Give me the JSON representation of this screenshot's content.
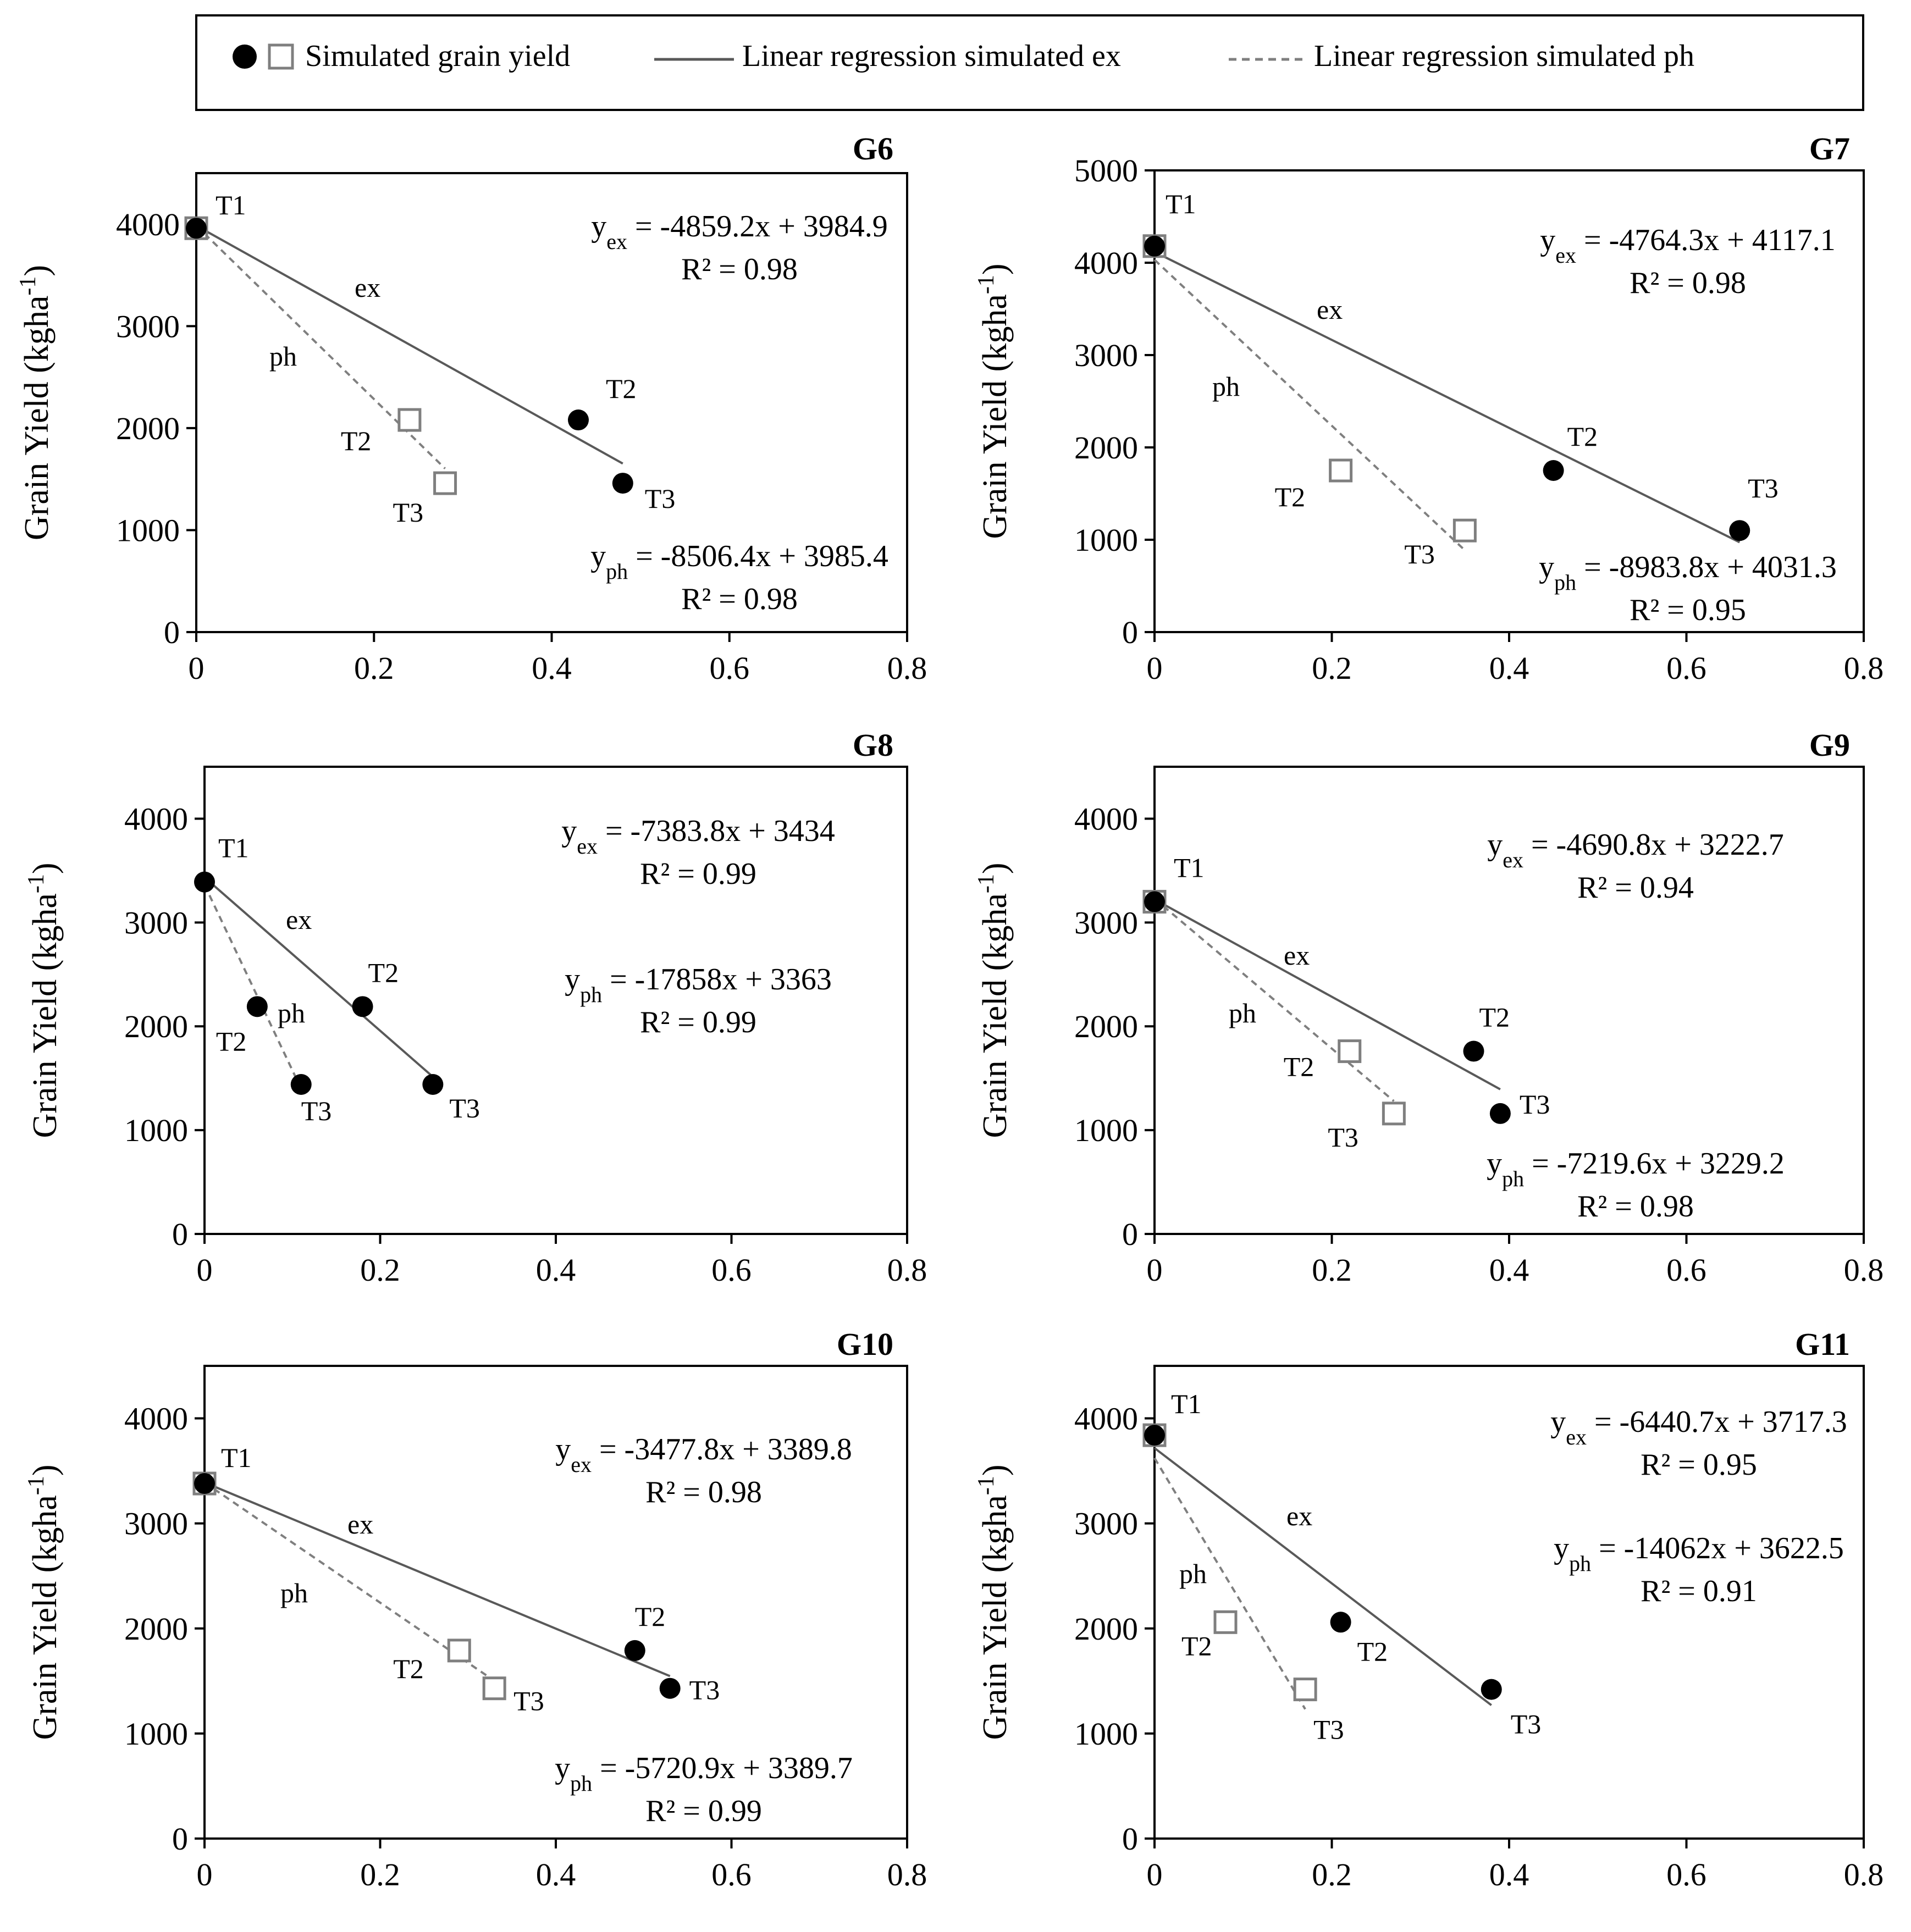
{
  "legend": {
    "markers_label": "Simulated grain yield",
    "ex_line_label": "Linear regression simulated ex",
    "ph_line_label": "Linear regression simulated ph"
  },
  "colors": {
    "ex_marker": "#000000",
    "ph_marker_edge": "#7f7f7f",
    "ex_line": "#595959",
    "ph_line": "#7f7f7f"
  },
  "chart_data": [
    {
      "type": "scatter",
      "title": "G6",
      "ylabel": "Grain Yield (kgha-1)",
      "ylabel_main": "Grain Yield (kgha",
      "ylabel_exp": "-1",
      "ylabel_close": ")",
      "xlim": [
        0,
        0.8
      ],
      "ylim": [
        0,
        4500
      ],
      "xticks": [
        "0",
        "0.2",
        "0.4",
        "0.6",
        "0.8"
      ],
      "yticks": [
        "0",
        "1000",
        "2000",
        "3000",
        "4000"
      ],
      "series": [
        {
          "name": "ex",
          "points": [
            {
              "x": 0,
              "y": 3960,
              "label": "T1"
            },
            {
              "x": 0.43,
              "y": 2080,
              "label": "T2"
            },
            {
              "x": 0.48,
              "y": 1460,
              "label": "T3"
            }
          ],
          "fit": {
            "slope": -4859.2,
            "intercept": 3984.9,
            "x_end": 0.48
          }
        },
        {
          "name": "ph",
          "points": [
            {
              "x": 0,
              "y": 3960,
              "label": ""
            },
            {
              "x": 0.24,
              "y": 2080,
              "label": "T2"
            },
            {
              "x": 0.28,
              "y": 1460,
              "label": "T3"
            }
          ],
          "fit": {
            "slope": -8506.4,
            "intercept": 3985.4,
            "x_end": 0.28
          }
        }
      ],
      "eq_ex": {
        "pre": "y",
        "sub": "ex",
        "post": " = -4859.2x + 3984.9",
        "r2": "R² = 0.98"
      },
      "eq_ph": {
        "pre": "y",
        "sub": "ph",
        "post": " = -8506.4x + 3985.4",
        "r2": "R² = 0.98"
      }
    },
    {
      "type": "scatter",
      "title": "G7",
      "ylabel": "Grain Yield (kgha-1)",
      "ylabel_main": "Grain Yield (kgha",
      "ylabel_exp": "-1",
      "ylabel_close": ")",
      "xlim": [
        0,
        0.8
      ],
      "ylim": [
        0,
        5000
      ],
      "xticks": [
        "0",
        "0.2",
        "0.4",
        "0.6",
        "0.8"
      ],
      "yticks": [
        "0",
        "1000",
        "2000",
        "3000",
        "4000",
        "5000"
      ],
      "series": [
        {
          "name": "ex",
          "points": [
            {
              "x": 0,
              "y": 4180,
              "label": "T1"
            },
            {
              "x": 0.45,
              "y": 1750,
              "label": "T2"
            },
            {
              "x": 0.66,
              "y": 1100,
              "label": "T3"
            }
          ],
          "fit": {
            "slope": -4764.3,
            "intercept": 4117.1,
            "x_end": 0.66
          }
        },
        {
          "name": "ph",
          "points": [
            {
              "x": 0,
              "y": 4180,
              "label": ""
            },
            {
              "x": 0.21,
              "y": 1750,
              "label": "T2"
            },
            {
              "x": 0.35,
              "y": 1100,
              "label": "T3"
            }
          ],
          "fit": {
            "slope": -8983.8,
            "intercept": 4031.3,
            "x_end": 0.35
          }
        }
      ],
      "eq_ex": {
        "pre": "y",
        "sub": "ex",
        "post": " = -4764.3x + 4117.1",
        "r2": "R² = 0.98"
      },
      "eq_ph": {
        "pre": "y",
        "sub": "ph",
        "post": " = -8983.8x + 4031.3",
        "r2": "R² = 0.95"
      }
    },
    {
      "type": "scatter",
      "title": "G8",
      "ylabel": "Grain Yield (kgha-1)",
      "ylabel_main": "Grain Yield (kgha",
      "ylabel_exp": "-1",
      "ylabel_close": ")",
      "xlim": [
        0,
        0.8
      ],
      "ylim": [
        0,
        4500
      ],
      "xticks": [
        "0",
        "0.2",
        "0.4",
        "0.6",
        "0.8"
      ],
      "yticks": [
        "0",
        "1000",
        "2000",
        "3000",
        "4000"
      ],
      "series": [
        {
          "name": "ex",
          "points": [
            {
              "x": 0,
              "y": 3390,
              "label": "T1"
            },
            {
              "x": 0.18,
              "y": 2190,
              "label": "T2"
            },
            {
              "x": 0.26,
              "y": 1440,
              "label": "T3"
            }
          ],
          "fit": {
            "slope": -7383.8,
            "intercept": 3434,
            "x_end": 0.26
          }
        },
        {
          "name": "ph",
          "points": [
            {
              "x": 0.06,
              "y": 2190,
              "label": "T2",
              "solid": true
            },
            {
              "x": 0.11,
              "y": 1440,
              "label": "T3",
              "solid": true
            }
          ],
          "fit": {
            "slope": -17858,
            "intercept": 3363,
            "x_end": 0.11
          }
        }
      ],
      "eq_ex": {
        "pre": "y",
        "sub": "ex",
        "post": " = -7383.8x + 3434",
        "r2": "R² = 0.99"
      },
      "eq_ph": {
        "pre": "y",
        "sub": "ph",
        "post": " = -17858x + 3363",
        "r2": "R² = 0.99"
      }
    },
    {
      "type": "scatter",
      "title": "G9",
      "ylabel": "Grain Yield (kgha-1)",
      "ylabel_main": "Grain Yield (kgha",
      "ylabel_exp": "-1",
      "ylabel_close": ")",
      "xlim": [
        0,
        0.8
      ],
      "ylim": [
        0,
        4500
      ],
      "xticks": [
        "0",
        "0.2",
        "0.4",
        "0.6",
        "0.8"
      ],
      "yticks": [
        "0",
        "1000",
        "2000",
        "3000",
        "4000"
      ],
      "series": [
        {
          "name": "ex",
          "points": [
            {
              "x": 0,
              "y": 3200,
              "label": "T1"
            },
            {
              "x": 0.36,
              "y": 1760,
              "label": "T2"
            },
            {
              "x": 0.39,
              "y": 1160,
              "label": "T3"
            }
          ],
          "fit": {
            "slope": -4690.8,
            "intercept": 3222.7,
            "x_end": 0.39
          }
        },
        {
          "name": "ph",
          "points": [
            {
              "x": 0,
              "y": 3200,
              "label": ""
            },
            {
              "x": 0.22,
              "y": 1760,
              "label": "T2"
            },
            {
              "x": 0.27,
              "y": 1160,
              "label": "T3"
            }
          ],
          "fit": {
            "slope": -7219.6,
            "intercept": 3229.2,
            "x_end": 0.27
          }
        }
      ],
      "eq_ex": {
        "pre": "y",
        "sub": "ex",
        "post": " = -4690.8x + 3222.7",
        "r2": "R² = 0.94"
      },
      "eq_ph": {
        "pre": "y",
        "sub": "ph",
        "post": " = -7219.6x + 3229.2",
        "r2": "R² = 0.98"
      }
    },
    {
      "type": "scatter",
      "title": "G10",
      "ylabel": "Grain Yield (kgha-1)",
      "ylabel_main": "Grain Yield (kgha",
      "ylabel_exp": "-1",
      "ylabel_close": ")",
      "xlim": [
        0,
        0.8
      ],
      "ylim": [
        0,
        4500
      ],
      "xticks": [
        "0",
        "0.2",
        "0.4",
        "0.6",
        "0.8"
      ],
      "yticks": [
        "0",
        "1000",
        "2000",
        "3000",
        "4000"
      ],
      "series": [
        {
          "name": "ex",
          "points": [
            {
              "x": 0,
              "y": 3380,
              "label": "T1"
            },
            {
              "x": 0.49,
              "y": 1790,
              "label": "T2"
            },
            {
              "x": 0.53,
              "y": 1430,
              "label": "T3"
            }
          ],
          "fit": {
            "slope": -3477.8,
            "intercept": 3389.8,
            "x_end": 0.53
          }
        },
        {
          "name": "ph",
          "points": [
            {
              "x": 0,
              "y": 3380,
              "label": ""
            },
            {
              "x": 0.29,
              "y": 1790,
              "label": "T2"
            },
            {
              "x": 0.33,
              "y": 1430,
              "label": "T3"
            }
          ],
          "fit": {
            "slope": -5720.9,
            "intercept": 3389.7,
            "x_end": 0.33
          }
        }
      ],
      "eq_ex": {
        "pre": "y",
        "sub": "ex",
        "post": " = -3477.8x + 3389.8",
        "r2": "R² = 0.98"
      },
      "eq_ph": {
        "pre": "y",
        "sub": "ph",
        "post": " = -5720.9x + 3389.7",
        "r2": "R² = 0.99"
      }
    },
    {
      "type": "scatter",
      "title": "G11",
      "ylabel": "Grain Yield (kgha-1)",
      "ylabel_main": "Grain Yield (kgha",
      "ylabel_exp": "-1",
      "ylabel_close": ")",
      "xlim": [
        0,
        0.8
      ],
      "ylim": [
        0,
        4500
      ],
      "xticks": [
        "0",
        "0.2",
        "0.4",
        "0.6",
        "0.8"
      ],
      "yticks": [
        "0",
        "1000",
        "2000",
        "3000",
        "4000"
      ],
      "series": [
        {
          "name": "ex",
          "points": [
            {
              "x": 0,
              "y": 3840,
              "label": "T1"
            },
            {
              "x": 0.21,
              "y": 2060,
              "label": "T2"
            },
            {
              "x": 0.38,
              "y": 1420,
              "label": "T3"
            }
          ],
          "fit": {
            "slope": -6440.7,
            "intercept": 3717.3,
            "x_end": 0.38
          }
        },
        {
          "name": "ph",
          "points": [
            {
              "x": 0,
              "y": 3840,
              "label": ""
            },
            {
              "x": 0.08,
              "y": 2060,
              "label": "T2"
            },
            {
              "x": 0.17,
              "y": 1420,
              "label": "T3"
            }
          ],
          "fit": {
            "slope": -14062,
            "intercept": 3622.5,
            "x_end": 0.17
          }
        }
      ],
      "eq_ex": {
        "pre": "y",
        "sub": "ex",
        "post": " = -6440.7x + 3717.3",
        "r2": "R² = 0.95"
      },
      "eq_ph": {
        "pre": "y",
        "sub": "ph",
        "post": " = -14062x + 3622.5",
        "r2": "R² = 0.91"
      }
    }
  ]
}
